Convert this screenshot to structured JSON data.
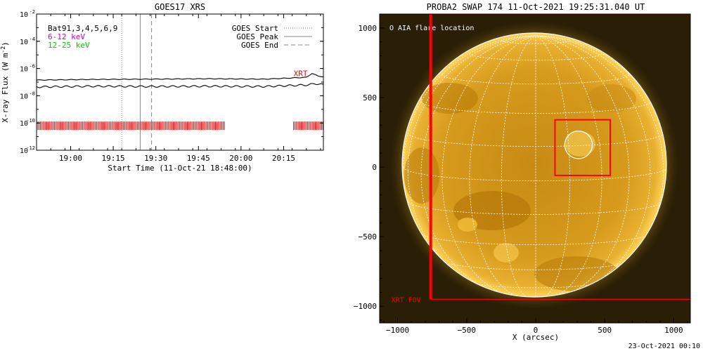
{
  "chart_data": [
    {
      "type": "line",
      "title": "GOES17 XRS",
      "xlabel": "Start Time (11-Oct-21 18:48:00)",
      "ylabel": "X-ray Flux (W m",
      "ylabel_sup": "-2",
      "ylabel_close": ")",
      "ylog": true,
      "ylim_exp": [
        -12,
        -2
      ],
      "xlim_minutes_after_start": [
        0,
        101
      ],
      "xticks": [
        {
          "label": "19:00",
          "minute": 12
        },
        {
          "label": "19:15",
          "minute": 27
        },
        {
          "label": "19:30",
          "minute": 42
        },
        {
          "label": "19:45",
          "minute": 57
        },
        {
          "label": "20:00",
          "minute": 72
        },
        {
          "label": "20:15",
          "minute": 87
        }
      ],
      "yticks": [
        {
          "mant": "10",
          "exp": "-2",
          "e": -2
        },
        {
          "mant": "10",
          "exp": "-4",
          "e": -4
        },
        {
          "mant": "10",
          "exp": "-6",
          "e": -6
        },
        {
          "mant": "10",
          "exp": "-8",
          "e": -8
        },
        {
          "mant": "10",
          "exp": "-10",
          "e": -10
        },
        {
          "mant": "10",
          "exp": "-12",
          "e": -12
        }
      ],
      "legend_topleft": [
        {
          "text": "Bat91,3,4,5,6,9",
          "color": "#000000"
        },
        {
          "text": "6-12 keV",
          "color": "#cc00cc"
        },
        {
          "text": "12-25 keV",
          "color": "#00cc00"
        }
      ],
      "legend_topright": [
        {
          "text": "GOES Start",
          "style": "dotted"
        },
        {
          "text": "GOES Peak",
          "style": "solid"
        },
        {
          "text": "GOES End",
          "style": "dashed"
        }
      ],
      "xrt_label": "XRT",
      "series": [
        {
          "name": "",
          "color": "#000000",
          "log_flux": [
            [
              0,
              -6.85
            ],
            [
              20,
              -6.8
            ],
            [
              40,
              -6.78
            ],
            [
              60,
              -6.75
            ],
            [
              80,
              -6.78
            ],
            [
              95,
              -6.65
            ],
            [
              97,
              -6.35
            ],
            [
              99,
              -6.55
            ],
            [
              101,
              -6.6
            ]
          ]
        },
        {
          "name": "",
          "color": "#000000",
          "log_flux": [
            [
              0,
              -7.35
            ],
            [
              20,
              -7.3
            ],
            [
              40,
              -7.32
            ],
            [
              60,
              -7.3
            ],
            [
              80,
              -7.32
            ],
            [
              96,
              -7.2
            ],
            [
              98,
              -7.1
            ],
            [
              101,
              -7.2
            ]
          ]
        }
      ],
      "goes_start_min": 30,
      "goes_peak_min": 36.5,
      "goes_end_min": 40.5,
      "xrt_coverage_log": -10.2,
      "xrt_coverage": [
        [
          0,
          66.5
        ],
        [
          90.5,
          101
        ]
      ],
      "colors": {
        "rug": "#ff0000",
        "xrt_text": "#ff0000",
        "vline": "#888888"
      }
    },
    {
      "type": "other",
      "title": "PROBA2 SWAP 174 11-Oct-2021 19:25:31.040 UT",
      "xlabel": "X (arcsec)",
      "ylabel": "",
      "xlim": [
        -1130,
        1120
      ],
      "ylim": [
        -1120,
        1100
      ],
      "xticks": [
        -1000,
        -500,
        0,
        500,
        1000
      ],
      "yticks": [
        1000,
        500,
        0,
        -500,
        -1000
      ],
      "xtick_labels": [
        "−1000",
        "−500",
        "0",
        "500",
        "1000"
      ],
      "ytick_labels": [
        "1000",
        "500",
        "0",
        "−500",
        "−1000"
      ],
      "solar_radius_arcsec": 958,
      "legend_text": "O AIA flare location",
      "flare_location": {
        "x": 310,
        "y": 160,
        "r": 100
      },
      "flare_box": {
        "x0": 140,
        "x1": 540,
        "y0": -60,
        "y1": 340
      },
      "xrt_fov": {
        "x0": -760,
        "x1": 1120,
        "y0": -950,
        "y1": 1100
      },
      "xrt_fov_label": "XRT FOV",
      "colors": {
        "background": "#2a1f06",
        "disk": "#d49a18",
        "limb": "#ffcf50",
        "grid": "#ffffff",
        "box": "#ff0000"
      }
    }
  ],
  "footer": {
    "timestamp": "23-Oct-2021 00:10"
  }
}
